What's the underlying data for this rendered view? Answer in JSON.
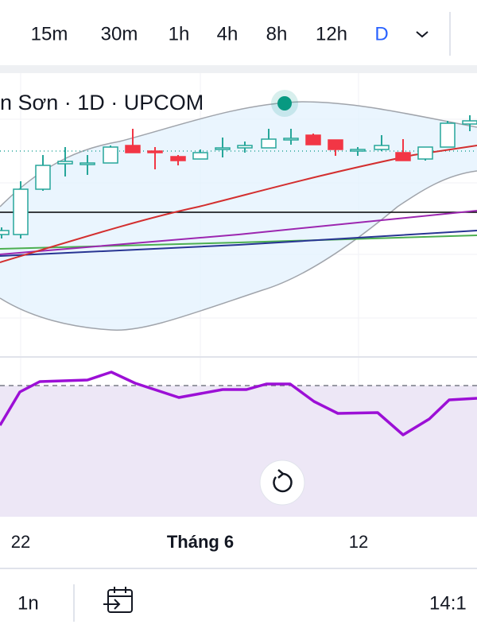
{
  "toolbar": {
    "intervals": [
      "15m",
      "30m",
      "1h",
      "4h",
      "8h",
      "12h",
      "D"
    ]
  },
  "chart": {
    "title": "n Sơn · 1D · UPCOM"
  },
  "time_axis": {
    "labels": [
      "22",
      "Tháng 6",
      "12"
    ]
  },
  "bottom_bar": {
    "range": "1n",
    "time": "14:1"
  }
}
